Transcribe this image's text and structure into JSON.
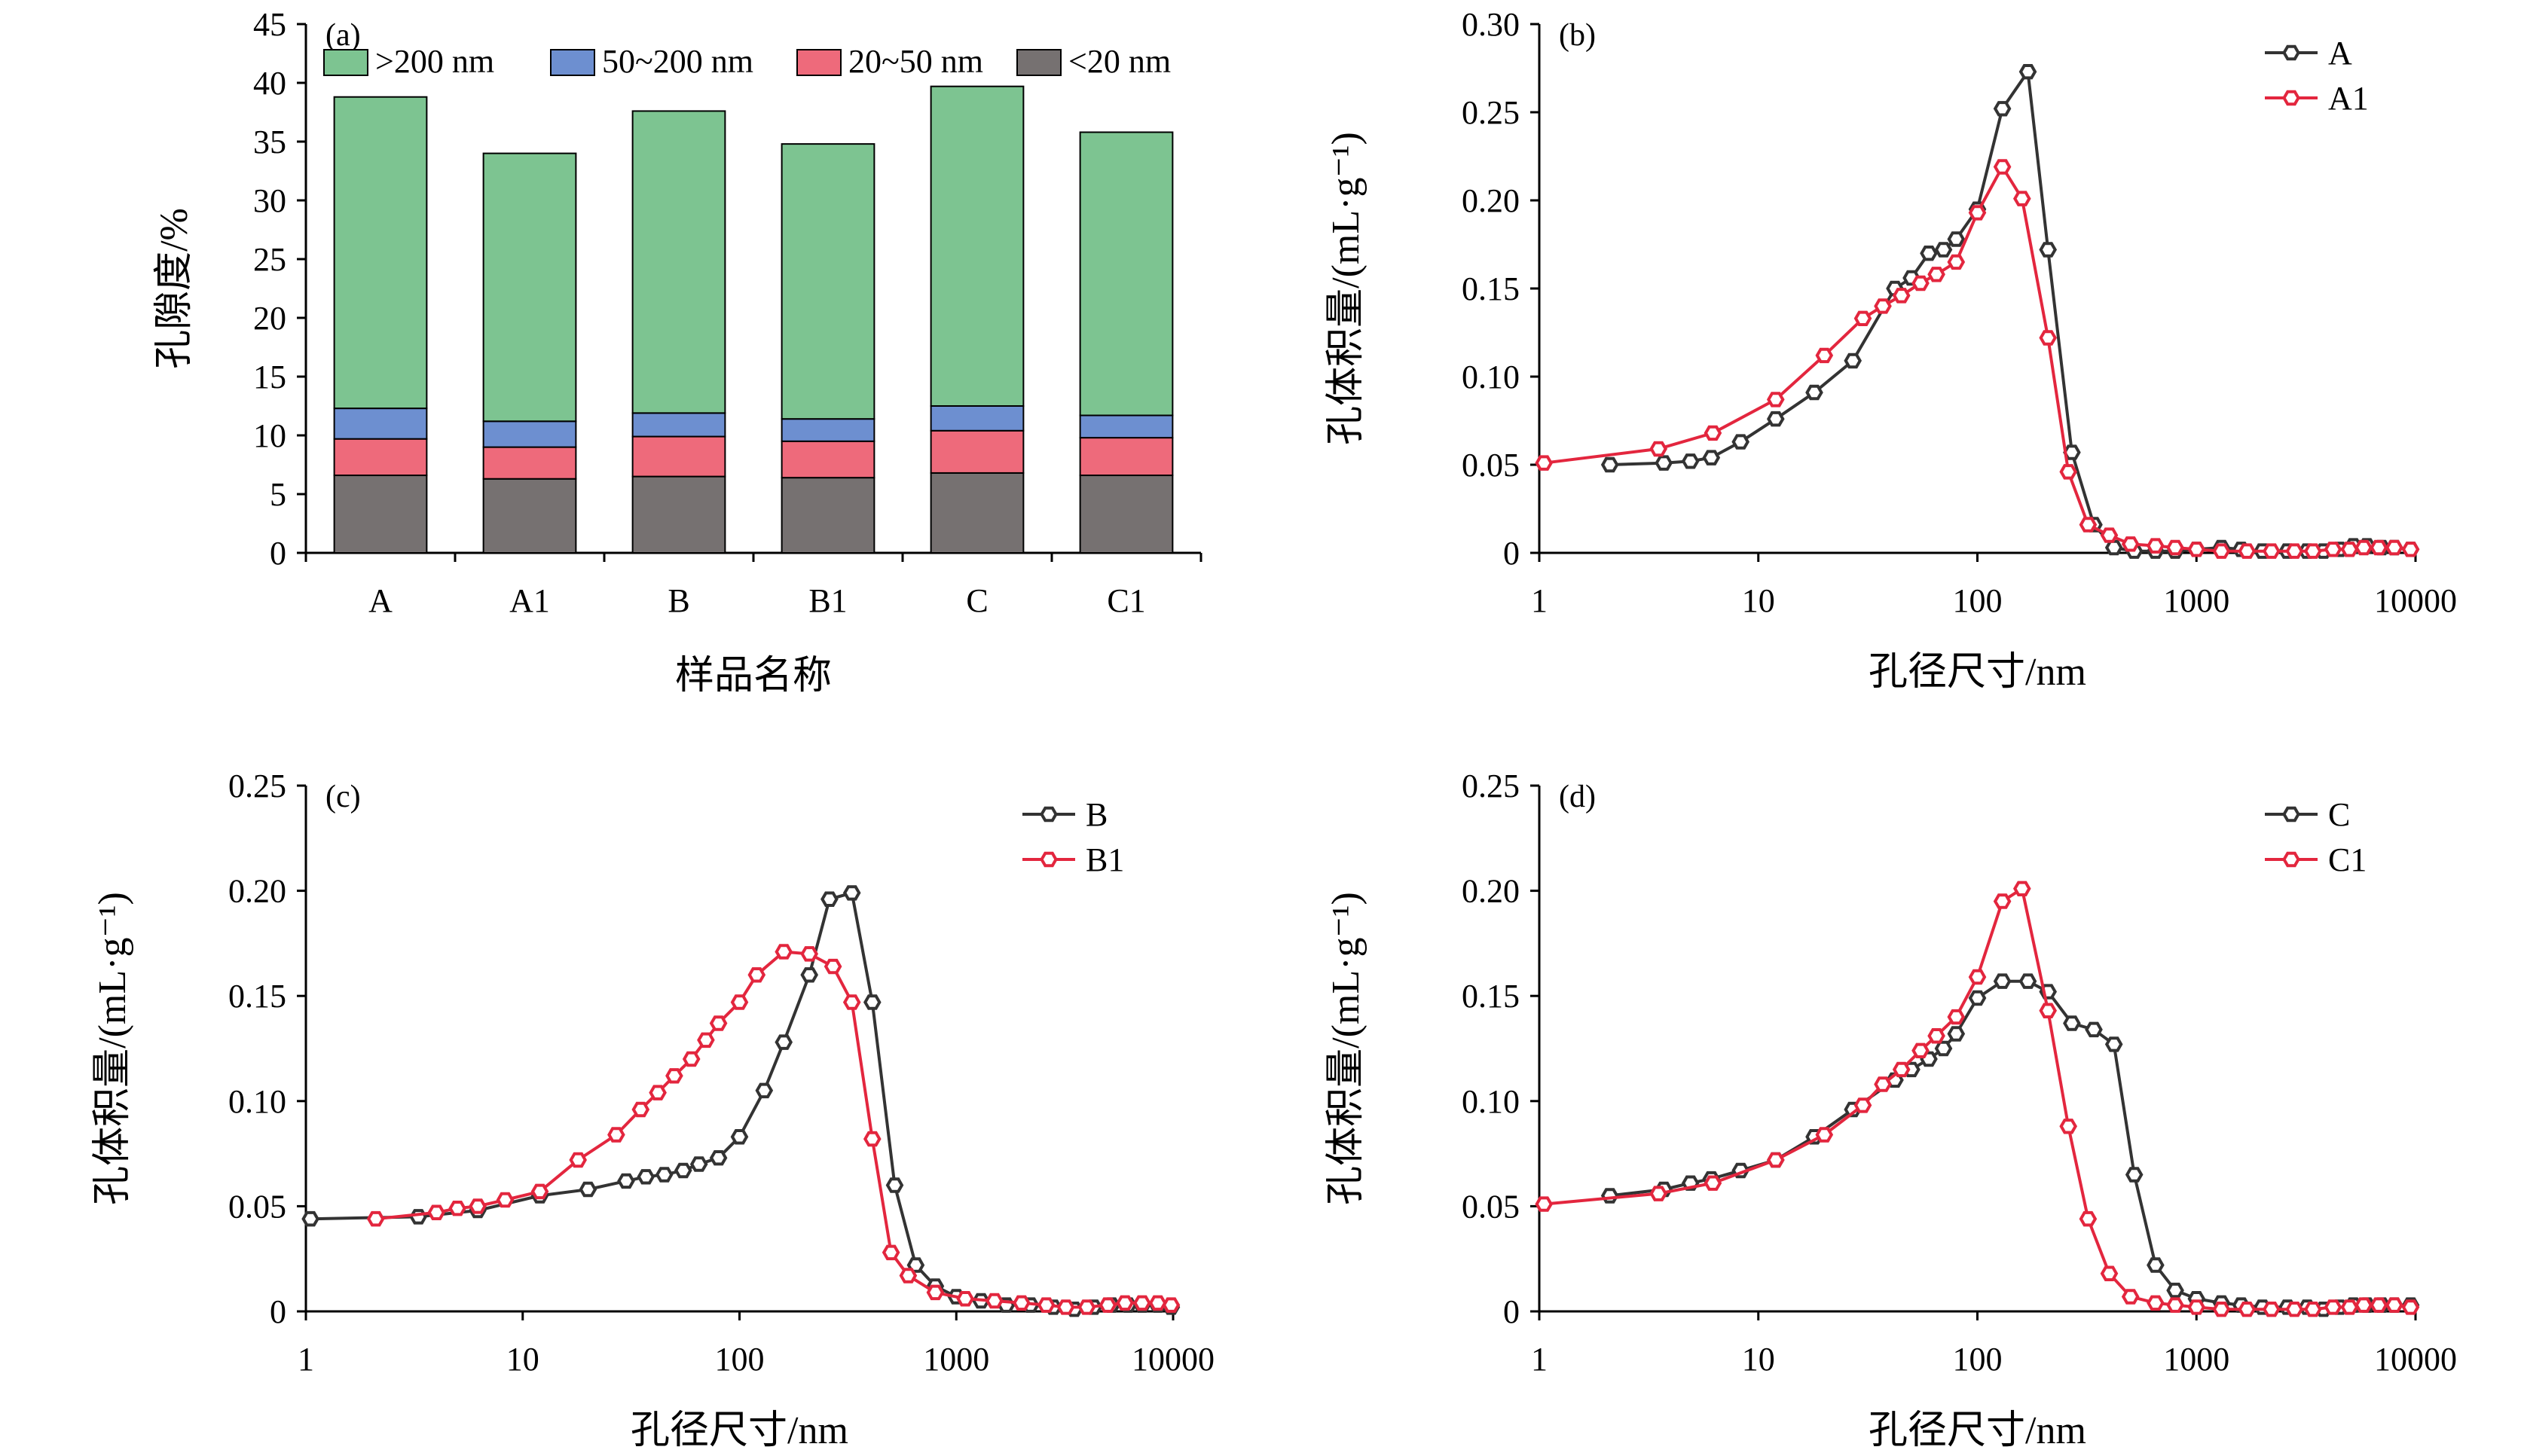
{
  "chart_data": [
    {
      "id": "a",
      "type": "bar",
      "stacked": true,
      "panel_label": "(a)",
      "xlabel": "样品名称",
      "ylabel": "孔隙度/%",
      "ylim": [
        0,
        45
      ],
      "yticks": [
        "0",
        "5",
        "10",
        "15",
        "20",
        "25",
        "30",
        "35",
        "40",
        "45"
      ],
      "categories": [
        "A",
        "A1",
        "B",
        "B1",
        "C",
        "C1"
      ],
      "legend_position": "top",
      "series": [
        {
          "name": "<20 nm",
          "color": "#767171",
          "values": [
            6.6,
            6.3,
            6.5,
            6.4,
            6.8,
            6.6
          ]
        },
        {
          "name": "20~50 nm",
          "color": "#ee6a7b",
          "values": [
            3.1,
            2.7,
            3.4,
            3.1,
            3.6,
            3.2
          ]
        },
        {
          "name": "50~200 nm",
          "color": "#6d8fd0",
          "values": [
            2.6,
            2.2,
            2.0,
            1.9,
            2.1,
            1.9
          ]
        },
        {
          "name": ">200 nm",
          "color": "#7dc491",
          "values": [
            26.5,
            22.8,
            25.7,
            23.4,
            27.2,
            24.1
          ]
        }
      ],
      "legend_order": [
        ">200 nm",
        "50~200 nm",
        "20~50 nm",
        "<20 nm"
      ]
    },
    {
      "id": "b",
      "type": "line",
      "panel_label": "(b)",
      "xlabel": "孔径尺寸/nm",
      "ylabel": "孔体积量/(mL·g⁻¹)",
      "x_scale": "log",
      "xlim": [
        1,
        10000
      ],
      "xticks": [
        "1",
        "10",
        "100",
        "1000",
        "10000"
      ],
      "ylim": [
        0,
        0.3
      ],
      "yticks": [
        "0",
        "0.05",
        "0.10",
        "0.15",
        "0.20",
        "0.25",
        "0.30"
      ],
      "legend_position": "top-right",
      "series": [
        {
          "name": "A",
          "color": "#333333",
          "x": [
            2.1,
            3.7,
            4.9,
            6.1,
            8.3,
            12,
            18,
            27,
            42,
            50,
            60,
            70,
            80,
            100,
            130,
            170,
            210,
            270,
            340,
            420,
            520,
            650,
            800,
            1000,
            1300,
            1600,
            2000,
            2600,
            3200,
            3800,
            4500,
            5200,
            6000,
            7000,
            8000,
            9500
          ],
          "y": [
            0.05,
            0.051,
            0.052,
            0.054,
            0.063,
            0.076,
            0.091,
            0.109,
            0.15,
            0.156,
            0.17,
            0.172,
            0.178,
            0.195,
            0.252,
            0.273,
            0.172,
            0.057,
            0.016,
            0.003,
            0.001,
            0.001,
            0.001,
            0.002,
            0.003,
            0.002,
            0.001,
            0.001,
            0.001,
            0.001,
            0.002,
            0.004,
            0.004,
            0.003,
            0.003,
            0.002
          ]
        },
        {
          "name": "A1",
          "color": "#e3263e",
          "x": [
            1.05,
            3.5,
            6.2,
            12,
            20,
            30,
            37,
            45,
            55,
            65,
            80,
            100,
            130,
            160,
            210,
            260,
            320,
            400,
            500,
            650,
            800,
            1000,
            1300,
            1700,
            2200,
            2800,
            3400,
            4200,
            5000,
            5800,
            6800,
            8000,
            9500
          ],
          "y": [
            0.051,
            0.059,
            0.068,
            0.087,
            0.112,
            0.133,
            0.14,
            0.146,
            0.153,
            0.158,
            0.165,
            0.193,
            0.219,
            0.201,
            0.122,
            0.046,
            0.016,
            0.01,
            0.005,
            0.004,
            0.003,
            0.002,
            0.001,
            0.001,
            0.001,
            0.001,
            0.001,
            0.002,
            0.002,
            0.003,
            0.003,
            0.003,
            0.002
          ]
        }
      ]
    },
    {
      "id": "c",
      "type": "line",
      "panel_label": "(c)",
      "xlabel": "孔径尺寸/nm",
      "ylabel": "孔体积量/(mL·g⁻¹)",
      "x_scale": "log",
      "xlim": [
        1,
        10000
      ],
      "xticks": [
        "1",
        "10",
        "100",
        "1000",
        "10000"
      ],
      "ylim": [
        0,
        0.25
      ],
      "yticks": [
        "0",
        "0.05",
        "0.10",
        "0.15",
        "0.20",
        "0.25"
      ],
      "legend_position": "top-right",
      "series": [
        {
          "name": "B",
          "color": "#333333",
          "x": [
            1.05,
            3.3,
            6.2,
            12,
            20,
            30,
            37,
            45,
            55,
            65,
            80,
            100,
            130,
            160,
            210,
            260,
            330,
            410,
            520,
            650,
            800,
            1000,
            1300,
            1700,
            2200,
            2800,
            3500,
            4300,
            5200,
            6200,
            7200,
            8500,
            9800
          ],
          "y": [
            0.044,
            0.045,
            0.048,
            0.055,
            0.058,
            0.062,
            0.064,
            0.065,
            0.067,
            0.07,
            0.073,
            0.083,
            0.105,
            0.128,
            0.16,
            0.196,
            0.199,
            0.147,
            0.06,
            0.022,
            0.012,
            0.007,
            0.005,
            0.003,
            0.003,
            0.002,
            0.001,
            0.002,
            0.003,
            0.003,
            0.003,
            0.003,
            0.002
          ]
        },
        {
          "name": "B1",
          "color": "#e3263e",
          "x": [
            2.1,
            4,
            5,
            6.2,
            8.3,
            12,
            18,
            27,
            35,
            42,
            50,
            60,
            70,
            80,
            100,
            120,
            160,
            210,
            270,
            330,
            410,
            500,
            600,
            800,
            1100,
            1500,
            2000,
            2600,
            3200,
            4000,
            5000,
            6000,
            7200,
            8500,
            9800
          ],
          "y": [
            0.044,
            0.047,
            0.049,
            0.05,
            0.053,
            0.057,
            0.072,
            0.084,
            0.096,
            0.104,
            0.112,
            0.12,
            0.129,
            0.137,
            0.147,
            0.16,
            0.171,
            0.17,
            0.164,
            0.147,
            0.082,
            0.028,
            0.017,
            0.009,
            0.006,
            0.005,
            0.004,
            0.003,
            0.002,
            0.002,
            0.003,
            0.004,
            0.004,
            0.004,
            0.003
          ]
        }
      ]
    },
    {
      "id": "d",
      "type": "line",
      "panel_label": "(d)",
      "xlabel": "孔径尺寸/nm",
      "ylabel": "孔体积量/(mL·g⁻¹)",
      "x_scale": "log",
      "xlim": [
        1,
        10000
      ],
      "xticks": [
        "1",
        "10",
        "100",
        "1000",
        "10000"
      ],
      "ylim": [
        0,
        0.25
      ],
      "yticks": [
        "0",
        "0.05",
        "0.10",
        "0.15",
        "0.20",
        "0.25"
      ],
      "legend_position": "top-right",
      "series": [
        {
          "name": "C",
          "color": "#333333",
          "x": [
            2.1,
            3.7,
            4.9,
            6.1,
            8.3,
            12,
            18,
            27,
            42,
            50,
            60,
            70,
            80,
            100,
            130,
            170,
            210,
            270,
            340,
            420,
            520,
            650,
            800,
            1000,
            1300,
            1600,
            2000,
            2600,
            3200,
            3800,
            4500,
            5200,
            6000,
            7000,
            8000,
            9500
          ],
          "y": [
            0.055,
            0.058,
            0.061,
            0.063,
            0.067,
            0.072,
            0.083,
            0.096,
            0.11,
            0.115,
            0.12,
            0.125,
            0.132,
            0.149,
            0.157,
            0.157,
            0.152,
            0.137,
            0.134,
            0.127,
            0.065,
            0.022,
            0.01,
            0.006,
            0.004,
            0.003,
            0.002,
            0.002,
            0.002,
            0.001,
            0.002,
            0.003,
            0.003,
            0.003,
            0.003,
            0.003
          ]
        },
        {
          "name": "C1",
          "color": "#e3263e",
          "x": [
            1.05,
            3.5,
            6.2,
            12,
            20,
            30,
            37,
            45,
            55,
            65,
            80,
            100,
            130,
            160,
            210,
            260,
            320,
            400,
            500,
            650,
            800,
            1000,
            1300,
            1700,
            2200,
            2800,
            3400,
            4200,
            5000,
            5800,
            6800,
            8000,
            9500
          ],
          "y": [
            0.051,
            0.056,
            0.061,
            0.072,
            0.084,
            0.098,
            0.108,
            0.115,
            0.124,
            0.131,
            0.14,
            0.159,
            0.195,
            0.201,
            0.143,
            0.088,
            0.044,
            0.018,
            0.007,
            0.004,
            0.003,
            0.002,
            0.001,
            0.001,
            0.001,
            0.001,
            0.001,
            0.002,
            0.002,
            0.003,
            0.003,
            0.003,
            0.002
          ]
        }
      ]
    }
  ]
}
